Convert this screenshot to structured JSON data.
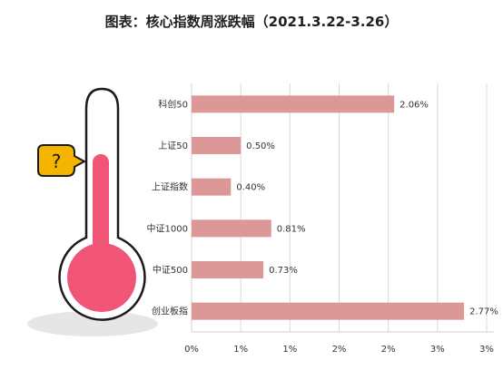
{
  "title": "图表：核心指数周涨跌幅（2021.3.22-3.26）",
  "illustration": {
    "badge_text": "?"
  },
  "colors": {
    "bar": "#dc9797",
    "grid": "#d9d9d9",
    "axis": "#d0d0d0",
    "thermo_fill": "#f05577",
    "badge": "#f5b400"
  },
  "chart_data": {
    "type": "bar",
    "orientation": "horizontal",
    "title": "图表：核心指数周涨跌幅（2021.3.22-3.26）",
    "categories": [
      "科创50",
      "上证50",
      "上证指数",
      "中证1000",
      "中证500",
      "创业板指"
    ],
    "values": [
      2.06,
      0.5,
      0.4,
      0.81,
      0.73,
      2.77
    ],
    "value_labels": [
      "2.06%",
      "0.50%",
      "0.40%",
      "0.81%",
      "0.73%",
      "2.77%"
    ],
    "x_ticks": [
      "0%",
      "1%",
      "1%",
      "2%",
      "2%",
      "3%",
      "3%"
    ],
    "xlim": [
      0,
      3
    ],
    "grid": true,
    "legend": "none"
  }
}
